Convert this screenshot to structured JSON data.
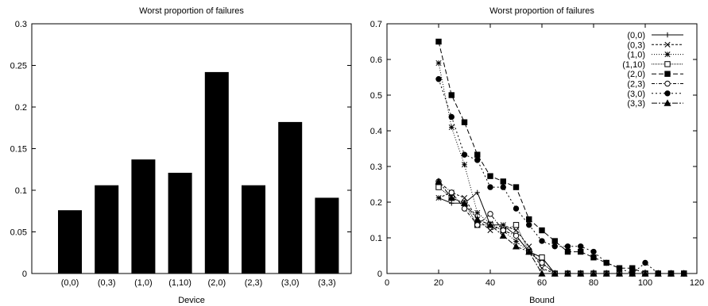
{
  "chart_data": [
    {
      "type": "bar",
      "title": "Worst proportion of failures",
      "xlabel": "Device",
      "ylabel": "",
      "categories": [
        "(0,0)",
        "(0,3)",
        "(1,0)",
        "(1,10)",
        "(2,0)",
        "(2,3)",
        "(3,0)",
        "(3,3)"
      ],
      "values": [
        0.076,
        0.106,
        0.137,
        0.121,
        0.242,
        0.106,
        0.182,
        0.091
      ],
      "ylim": [
        0,
        0.3
      ],
      "yticks": [
        0,
        0.05,
        0.1,
        0.15,
        0.2,
        0.25,
        0.3
      ],
      "ytick_labels": [
        "0",
        "0.05",
        "0.1",
        "0.15",
        "0.2",
        "0.25",
        "0.3"
      ],
      "bar_color": "#000000",
      "grid": false
    },
    {
      "type": "line",
      "title": "Worst proportion of failures",
      "xlabel": "Bound",
      "ylabel": "",
      "xlim": [
        0,
        120
      ],
      "ylim": [
        0,
        0.7
      ],
      "xticks": [
        0,
        20,
        40,
        60,
        80,
        100,
        120
      ],
      "xtick_labels": [
        "0",
        "20",
        "40",
        "60",
        "80",
        "100",
        "120"
      ],
      "yticks": [
        0,
        0.1,
        0.2,
        0.3,
        0.4,
        0.5,
        0.6,
        0.7
      ],
      "ytick_labels": [
        "0",
        "0.1",
        "0.2",
        "0.3",
        "0.4",
        "0.5",
        "0.6",
        "0.7"
      ],
      "legend_position": "top-right",
      "grid": false,
      "x": [
        20,
        25,
        30,
        35,
        40,
        45,
        50,
        55,
        60,
        65,
        70,
        75,
        80,
        85,
        90,
        95,
        100,
        105,
        110,
        115
      ],
      "series": [
        {
          "name": "(0,0)",
          "marker": "plus",
          "dash": "",
          "values": [
            0.212,
            0.197,
            0.197,
            0.227,
            0.136,
            0.136,
            0.106,
            0.061,
            0.045,
            0.0,
            0,
            0,
            0,
            0,
            0,
            0,
            0,
            0,
            0,
            0
          ]
        },
        {
          "name": "(0,3)",
          "marker": "cross",
          "dash": "3,2",
          "values": [
            0.212,
            0.227,
            0.212,
            0.152,
            0.121,
            0.136,
            0.121,
            0.076,
            0.015,
            0.0,
            0,
            0,
            0,
            0,
            0,
            0,
            0,
            0,
            0,
            0
          ]
        },
        {
          "name": "(1,0)",
          "marker": "star",
          "dash": "1,2",
          "values": [
            0.59,
            0.41,
            0.305,
            0.17,
            0.14,
            0.12,
            0.09,
            0.06,
            0.03,
            0.0,
            0,
            0,
            0,
            0,
            0,
            0,
            0,
            0,
            0,
            0
          ]
        },
        {
          "name": "(1,10)",
          "marker": "square-open",
          "dash": "1,1",
          "values": [
            0.242,
            0.212,
            0.197,
            0.136,
            0.136,
            0.121,
            0.136,
            0.061,
            0.045,
            0.0,
            0,
            0,
            0,
            0,
            0,
            0,
            0,
            0,
            0,
            0
          ]
        },
        {
          "name": "(2,0)",
          "marker": "square-filled",
          "dash": "6,3",
          "values": [
            0.65,
            0.5,
            0.424,
            0.333,
            0.273,
            0.258,
            0.242,
            0.152,
            0.121,
            0.091,
            0.061,
            0.061,
            0.045,
            0.03,
            0.015,
            0.015,
            0.0,
            0,
            0,
            0
          ]
        },
        {
          "name": "(2,3)",
          "marker": "circle-open",
          "dash": "4,2,1,2",
          "values": [
            0.258,
            0.227,
            0.182,
            0.136,
            0.167,
            0.121,
            0.106,
            0.061,
            0.03,
            0.0,
            0,
            0,
            0,
            0,
            0,
            0,
            0,
            0,
            0,
            0
          ]
        },
        {
          "name": "(3,0)",
          "marker": "circle-filled",
          "dash": "2,3",
          "values": [
            0.545,
            0.439,
            0.333,
            0.318,
            0.242,
            0.242,
            0.182,
            0.136,
            0.091,
            0.076,
            0.076,
            0.076,
            0.061,
            0.03,
            0.015,
            0.0,
            0.03,
            0.0,
            0,
            0
          ]
        },
        {
          "name": "(3,3)",
          "marker": "triangle-filled",
          "dash": "7,2,2,2",
          "values": [
            0.258,
            0.212,
            0.197,
            0.152,
            0.136,
            0.106,
            0.076,
            0.061,
            0.0,
            0,
            0,
            0,
            0,
            0,
            0,
            0,
            0,
            0,
            0,
            0
          ]
        }
      ]
    }
  ]
}
